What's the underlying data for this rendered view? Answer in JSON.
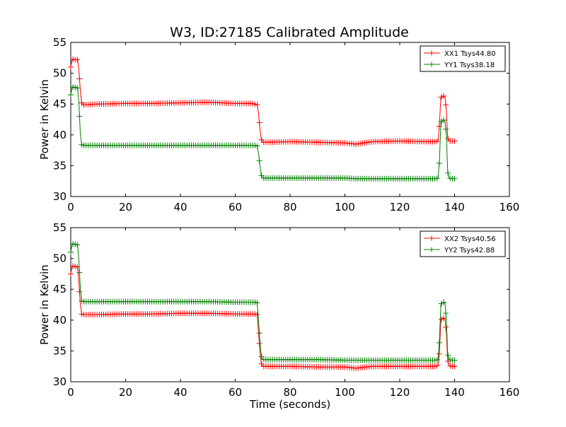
{
  "figure": {
    "title": "W3, ID:27185 Calibrated Amplitude"
  },
  "chart_data": [
    {
      "type": "line",
      "title": "W3, ID:27185 Calibrated Amplitude",
      "xlabel": "",
      "ylabel": "Power in Kelvin",
      "xlim": [
        0,
        160
      ],
      "ylim": [
        30,
        55
      ],
      "xticks": [
        0,
        20,
        40,
        60,
        80,
        100,
        120,
        140,
        160
      ],
      "yticks": [
        30,
        35,
        40,
        45,
        50,
        55
      ],
      "grid": false,
      "legend_position": "top-right",
      "marker": "+",
      "series": [
        {
          "name": "XX1 Tsys44.80",
          "color": "#ff0000",
          "x": [
            0,
            0.5,
            1,
            1.5,
            2,
            2.5,
            3,
            3.5,
            4,
            4.5,
            5,
            10,
            20,
            30,
            40,
            50,
            60,
            66,
            67,
            68,
            68.5,
            69,
            69.5,
            70,
            72,
            80,
            90,
            100,
            104,
            110,
            120,
            130,
            133,
            134,
            134.5,
            135,
            135.5,
            136,
            136.5,
            137,
            137.5,
            138,
            139,
            140
          ],
          "y": [
            51.0,
            52.2,
            52.3,
            52.2,
            52.2,
            52.2,
            50.5,
            47.0,
            45.2,
            44.9,
            44.9,
            45.0,
            45.1,
            45.1,
            45.2,
            45.3,
            45.1,
            45.1,
            45.0,
            44.9,
            43.5,
            41.0,
            39.3,
            38.8,
            38.8,
            38.9,
            38.8,
            38.7,
            38.5,
            38.9,
            39.0,
            38.9,
            38.9,
            39.0,
            42.0,
            46.0,
            46.3,
            46.3,
            46.2,
            44.0,
            39.5,
            39.0,
            39.0,
            39.0
          ]
        },
        {
          "name": "YY1 Tsys38.18",
          "color": "#008000",
          "x": [
            0,
            0.5,
            1,
            1.5,
            2,
            2.5,
            3,
            3.5,
            4,
            4.5,
            5,
            10,
            20,
            30,
            40,
            50,
            60,
            66,
            67,
            68,
            68.5,
            69,
            69.5,
            70,
            72,
            80,
            90,
            100,
            104,
            110,
            120,
            130,
            133,
            134,
            134.5,
            135,
            135.5,
            136,
            136.5,
            137,
            137.5,
            138,
            139,
            140
          ],
          "y": [
            46.5,
            47.7,
            47.8,
            47.7,
            47.7,
            47.6,
            45.0,
            40.0,
            38.4,
            38.3,
            38.3,
            38.3,
            38.3,
            38.3,
            38.3,
            38.3,
            38.3,
            38.3,
            38.3,
            38.2,
            37.0,
            35.0,
            33.5,
            33.0,
            33.0,
            33.0,
            33.0,
            33.0,
            32.9,
            32.9,
            32.9,
            32.9,
            32.9,
            33.0,
            36.0,
            42.0,
            42.4,
            42.4,
            42.3,
            40.0,
            34.0,
            33.0,
            32.9,
            32.9
          ]
        }
      ]
    },
    {
      "type": "line",
      "title": "",
      "xlabel": "Time (seconds)",
      "ylabel": "Power in Kelvin",
      "xlim": [
        0,
        160
      ],
      "ylim": [
        30,
        55
      ],
      "xticks": [
        0,
        20,
        40,
        60,
        80,
        100,
        120,
        140,
        160
      ],
      "yticks": [
        30,
        35,
        40,
        45,
        50,
        55
      ],
      "grid": false,
      "legend_position": "top-right",
      "marker": "+",
      "series": [
        {
          "name": "XX2 Tsys40.56",
          "color": "#ff0000",
          "x": [
            0,
            0.5,
            1,
            1.5,
            2,
            2.5,
            3,
            3.5,
            4,
            4.5,
            5,
            10,
            20,
            30,
            40,
            50,
            60,
            66,
            67,
            68,
            68.5,
            69,
            69.5,
            70,
            72,
            80,
            90,
            100,
            104,
            110,
            120,
            130,
            133,
            134,
            134.5,
            135,
            135.5,
            136,
            136.5,
            137,
            137.5,
            138,
            139,
            140
          ],
          "y": [
            47.5,
            48.7,
            48.8,
            48.7,
            48.7,
            48.6,
            46.0,
            42.5,
            41.0,
            40.9,
            40.9,
            40.9,
            41.0,
            41.0,
            41.1,
            41.1,
            41.0,
            41.0,
            41.0,
            40.9,
            38.0,
            35.0,
            33.0,
            32.5,
            32.5,
            32.5,
            32.4,
            32.4,
            32.2,
            32.5,
            32.5,
            32.5,
            32.5,
            32.6,
            35.0,
            40.0,
            40.3,
            40.3,
            40.2,
            38.0,
            33.5,
            32.6,
            32.5,
            32.5
          ]
        },
        {
          "name": "YY2 Tsys42.88",
          "color": "#008000",
          "x": [
            0,
            0.5,
            1,
            1.5,
            2,
            2.5,
            3,
            3.5,
            4,
            4.5,
            5,
            10,
            20,
            30,
            40,
            50,
            60,
            66,
            67,
            68,
            68.5,
            69,
            69.5,
            70,
            72,
            80,
            90,
            100,
            104,
            110,
            120,
            130,
            133,
            134,
            134.5,
            135,
            135.5,
            136,
            136.5,
            137,
            137.5,
            138,
            139,
            140
          ],
          "y": [
            51.0,
            52.3,
            52.4,
            52.3,
            52.3,
            52.2,
            49.5,
            45.0,
            43.1,
            43.0,
            43.0,
            43.0,
            43.0,
            43.0,
            43.0,
            43.0,
            42.9,
            42.9,
            42.9,
            42.8,
            40.0,
            36.5,
            34.2,
            33.6,
            33.6,
            33.6,
            33.6,
            33.5,
            33.5,
            33.5,
            33.5,
            33.5,
            33.5,
            33.6,
            37.0,
            42.5,
            42.9,
            42.9,
            42.8,
            40.0,
            34.5,
            33.6,
            33.5,
            33.5
          ]
        }
      ]
    }
  ]
}
